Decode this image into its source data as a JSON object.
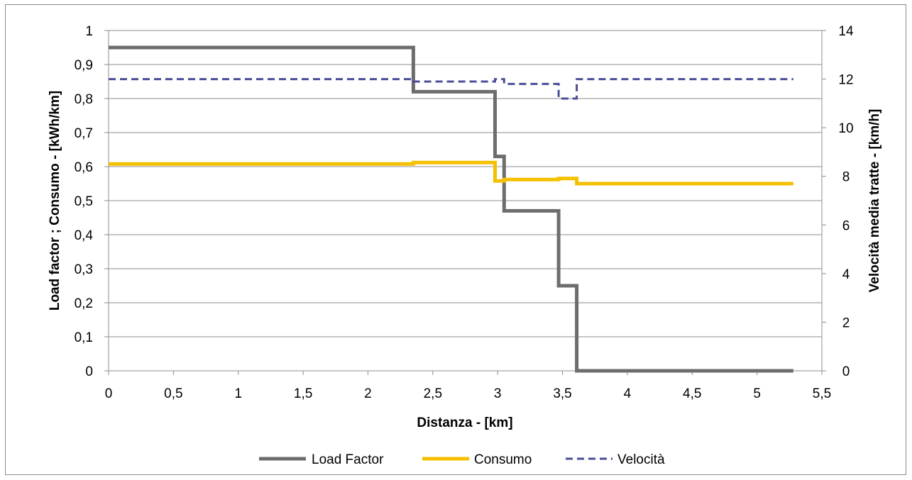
{
  "chart_data": {
    "type": "line",
    "title": "",
    "xlabel": "Distanza - [km]",
    "ylabel": "Load factor ; Consumo - [kWh/km]",
    "y2label": "Velocità media tratte - [km/h]",
    "xlim": [
      0,
      5.5
    ],
    "ylim": [
      0,
      1
    ],
    "y2lim": [
      0,
      14
    ],
    "x_ticks": [
      "0",
      "0,5",
      "1",
      "1,5",
      "2",
      "2,5",
      "3",
      "3,5",
      "4",
      "4,5",
      "5",
      "5,5"
    ],
    "y_ticks": [
      "0",
      "0,1",
      "0,2",
      "0,3",
      "0,4",
      "0,5",
      "0,6",
      "0,7",
      "0,8",
      "0,9",
      "1"
    ],
    "y2_ticks": [
      "0",
      "2",
      "4",
      "6",
      "8",
      "10",
      "12",
      "14"
    ],
    "grid": "horizontal",
    "legend_position": "bottom",
    "series": [
      {
        "name": "Load Factor",
        "axis": "left",
        "color": "#6d6d6d",
        "style": "solid",
        "x": [
          0,
          2.35,
          2.35,
          2.98,
          2.98,
          3.05,
          3.05,
          3.47,
          3.47,
          3.61,
          3.61,
          5.28
        ],
        "y": [
          0.95,
          0.95,
          0.82,
          0.82,
          0.63,
          0.63,
          0.47,
          0.47,
          0.25,
          0.25,
          0.0,
          0.0
        ]
      },
      {
        "name": "Consumo",
        "axis": "left",
        "color": "#f5c000",
        "style": "solid",
        "x": [
          0,
          2.35,
          2.35,
          2.98,
          2.98,
          3.05,
          3.05,
          3.47,
          3.47,
          3.61,
          3.61,
          5.28
        ],
        "y": [
          0.608,
          0.608,
          0.612,
          0.612,
          0.558,
          0.558,
          0.562,
          0.562,
          0.565,
          0.565,
          0.55,
          0.55
        ]
      },
      {
        "name": "Velocità",
        "axis": "right",
        "color": "#4a4f96",
        "style": "dashed",
        "x": [
          0,
          2.35,
          2.35,
          2.98,
          2.98,
          3.05,
          3.05,
          3.47,
          3.47,
          3.61,
          3.61,
          5.28
        ],
        "y": [
          12.0,
          12.0,
          11.9,
          11.9,
          12.0,
          12.0,
          11.8,
          11.8,
          11.2,
          11.2,
          12.0,
          12.0
        ]
      }
    ]
  }
}
